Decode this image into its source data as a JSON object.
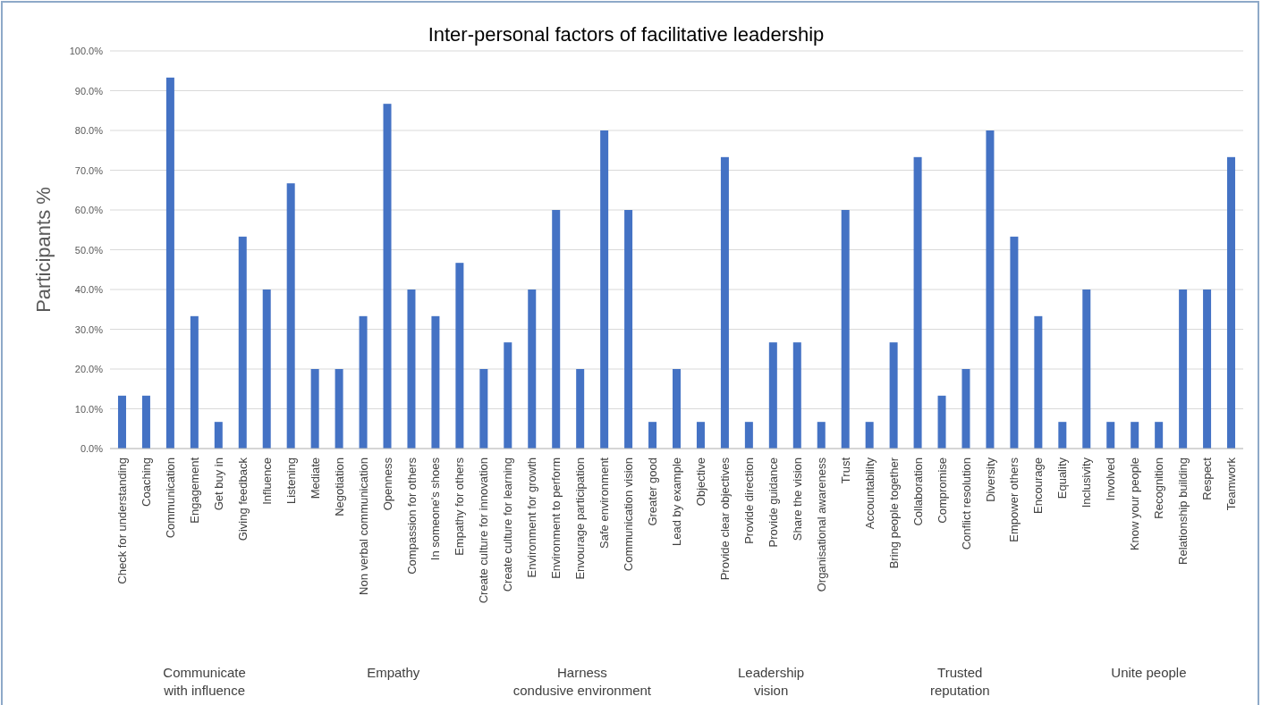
{
  "chart_data": {
    "type": "bar",
    "title": "Inter-personal factors of facilitative leadership",
    "ylabel": "Participants %",
    "categories": [
      "Check for understanding",
      "Coaching",
      "Communication",
      "Engagement",
      "Get buy in",
      "Giving feedback",
      "Influence",
      "Listening",
      "Mediate",
      "Negotiation",
      "Non verbal communication",
      "Openness",
      "Compassion for others",
      "In someone's shoes",
      "Empathy for others",
      "Create culture for innovation",
      "Create culture for learning",
      "Environment for growth",
      "Environment to perform",
      "Envourage participation",
      "Safe environment",
      "Communication vision",
      "Greater good",
      "Lead by example",
      "Objective",
      "Provide clear objectives",
      "Provide direction",
      "Provide guidance",
      "Share the vision",
      "Organisational awareness",
      "Trust",
      "Accountability",
      "Bring people together",
      "Collaboration",
      "Compromise",
      "Conflict resolution",
      "Diversity",
      "Empower others",
      "Encourage",
      "Equality",
      "Inclusivity",
      "Involved",
      "Know your people",
      "Recognition",
      "Relationship building",
      "Respect",
      "Teamwork"
    ],
    "values": [
      13.3,
      13.3,
      93.3,
      33.3,
      6.7,
      53.3,
      40,
      66.7,
      20,
      20,
      33.3,
      86.7,
      40,
      33.3,
      46.7,
      20,
      26.7,
      40,
      60,
      20,
      80,
      60,
      6.7,
      20,
      6.7,
      73.3,
      6.7,
      26.7,
      26.7,
      6.7,
      60,
      6.7,
      26.7,
      73.3,
      13.3,
      20,
      80,
      53.3,
      33.3,
      6.7,
      40,
      6.7,
      6.7,
      6.7,
      40,
      40,
      73.3
    ],
    "color": "#4472c4",
    "ylim": [
      0,
      100
    ],
    "yticks": [
      {
        "value": 0,
        "label": "0.0%"
      },
      {
        "value": 10,
        "label": "10.0%"
      },
      {
        "value": 20,
        "label": "20.0%"
      },
      {
        "value": 30,
        "label": "30.0%"
      },
      {
        "value": 40,
        "label": "40.0%"
      },
      {
        "value": 50,
        "label": "50.0%"
      },
      {
        "value": 60,
        "label": "60.0%"
      },
      {
        "value": 70,
        "label": "70.0%"
      },
      {
        "value": 80,
        "label": "80.0%"
      },
      {
        "value": 90,
        "label": "90.0%"
      },
      {
        "value": 100,
        "label": "100.0%"
      }
    ],
    "grid": "y",
    "annotations": [
      "Communicate with influence",
      "Empathy",
      "Harness condusive environment",
      "Leadership vision",
      "Trusted reputation",
      "Unite people"
    ]
  }
}
